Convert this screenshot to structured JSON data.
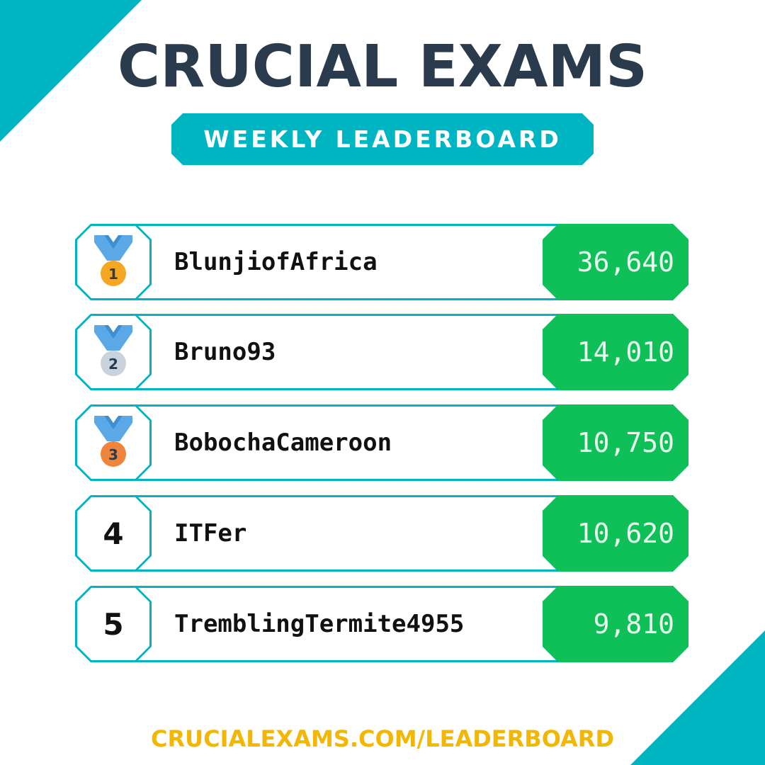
{
  "header": {
    "title": "CRUCIAL EXAMS",
    "subtitle": "WEEKLY LEADERBOARD"
  },
  "leaderboard": [
    {
      "rank": "1",
      "name": "BlunjiofAfrica",
      "score": "36,640",
      "medal": "gold-medal-icon",
      "medal_color": "#f5a623"
    },
    {
      "rank": "2",
      "name": "Bruno93",
      "score": "14,010",
      "medal": "silver-medal-icon",
      "medal_color": "#c9d3dd"
    },
    {
      "rank": "3",
      "name": "BobochaCameroon",
      "score": "10,750",
      "medal": "bronze-medal-icon",
      "medal_color": "#f0843c"
    },
    {
      "rank": "4",
      "name": "ITFer",
      "score": "10,620"
    },
    {
      "rank": "5",
      "name": "TremblingTermite4955",
      "score": "9,810"
    }
  ],
  "footer": {
    "url": "CRUCIALEXAMS.COM/LEADERBOARD"
  },
  "colors": {
    "accent": "#00b5c2",
    "score_bg": "#0fbf57",
    "title": "#2b3b4e",
    "footer": "#f2b705",
    "ribbon": "#5aa9e6"
  }
}
